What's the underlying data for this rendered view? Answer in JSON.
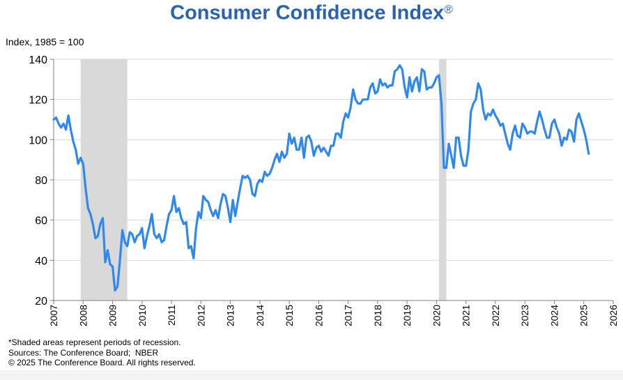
{
  "chart_data": {
    "type": "line",
    "title": "Consumer Confidence Index",
    "title_mark": "®",
    "ylabel": "Index, 1985 = 100",
    "xlabel": "",
    "ylim": [
      20,
      140
    ],
    "xlim": [
      2007,
      2026
    ],
    "y_ticks": [
      20,
      40,
      60,
      80,
      100,
      120,
      140
    ],
    "x_ticks": [
      "2007",
      "2008",
      "2009",
      "2010",
      "2011",
      "2012",
      "2013",
      "2014",
      "2015",
      "2016",
      "2017",
      "2018",
      "2019",
      "2020",
      "2021",
      "2022",
      "2023",
      "2024",
      "2025",
      "2026"
    ],
    "grid": "horizontal",
    "line_color": "#2e88ef",
    "recession_color": "#d9d9d9",
    "recessions": [
      [
        2007.917,
        2009.5
      ],
      [
        2020.083,
        2020.333
      ]
    ],
    "series": [
      {
        "x": [
          2007.0,
          2007.083,
          2007.167,
          2007.25,
          2007.333,
          2007.417,
          2007.5,
          2007.583,
          2007.667,
          2007.75,
          2007.833,
          2007.917,
          2008.0,
          2008.083,
          2008.167,
          2008.25,
          2008.333,
          2008.417,
          2008.5,
          2008.583,
          2008.667,
          2008.75,
          2008.833,
          2008.917,
          2009.0,
          2009.083,
          2009.167,
          2009.25,
          2009.333,
          2009.417,
          2009.5,
          2009.583,
          2009.667,
          2009.75,
          2009.833,
          2009.917,
          2010.0,
          2010.083,
          2010.167,
          2010.25,
          2010.333,
          2010.417,
          2010.5,
          2010.583,
          2010.667,
          2010.75,
          2010.833,
          2010.917,
          2011.0,
          2011.083,
          2011.167,
          2011.25,
          2011.333,
          2011.417,
          2011.5,
          2011.583,
          2011.667,
          2011.75,
          2011.833,
          2011.917,
          2012.0,
          2012.083,
          2012.167,
          2012.25,
          2012.333,
          2012.417,
          2012.5,
          2012.583,
          2012.667,
          2012.75,
          2012.833,
          2012.917,
          2013.0,
          2013.083,
          2013.167,
          2013.25,
          2013.333,
          2013.417,
          2013.5,
          2013.583,
          2013.667,
          2013.75,
          2013.833,
          2013.917,
          2014.0,
          2014.083,
          2014.167,
          2014.25,
          2014.333,
          2014.417,
          2014.5,
          2014.583,
          2014.667,
          2014.75,
          2014.833,
          2014.917,
          2015.0,
          2015.083,
          2015.167,
          2015.25,
          2015.333,
          2015.417,
          2015.5,
          2015.583,
          2015.667,
          2015.75,
          2015.833,
          2015.917,
          2016.0,
          2016.083,
          2016.167,
          2016.25,
          2016.333,
          2016.417,
          2016.5,
          2016.583,
          2016.667,
          2016.75,
          2016.833,
          2016.917,
          2017.0,
          2017.083,
          2017.167,
          2017.25,
          2017.333,
          2017.417,
          2017.5,
          2017.583,
          2017.667,
          2017.75,
          2017.833,
          2017.917,
          2018.0,
          2018.083,
          2018.167,
          2018.25,
          2018.333,
          2018.417,
          2018.5,
          2018.583,
          2018.667,
          2018.75,
          2018.833,
          2018.917,
          2019.0,
          2019.083,
          2019.167,
          2019.25,
          2019.333,
          2019.417,
          2019.5,
          2019.583,
          2019.667,
          2019.75,
          2019.833,
          2019.917,
          2020.0,
          2020.083,
          2020.167,
          2020.25,
          2020.333,
          2020.417,
          2020.5,
          2020.583,
          2020.667,
          2020.75,
          2020.833,
          2020.917,
          2021.0,
          2021.083,
          2021.167,
          2021.25,
          2021.333,
          2021.417,
          2021.5,
          2021.583,
          2021.667,
          2021.75,
          2021.833,
          2021.917,
          2022.0,
          2022.083,
          2022.167,
          2022.25,
          2022.333,
          2022.417,
          2022.5,
          2022.583,
          2022.667,
          2022.75,
          2022.833,
          2022.917,
          2023.0,
          2023.083,
          2023.167,
          2023.25,
          2023.333,
          2023.417,
          2023.5,
          2023.583,
          2023.667,
          2023.75,
          2023.833,
          2023.917,
          2024.0,
          2024.083,
          2024.167,
          2024.25,
          2024.333,
          2024.417,
          2024.5,
          2024.583,
          2024.667,
          2024.75,
          2024.833,
          2024.917,
          2025.0,
          2025.083,
          2025.167
        ],
        "values": [
          110,
          111,
          108,
          106,
          108,
          105,
          112,
          105,
          99,
          95,
          88,
          91,
          88,
          76,
          66,
          63,
          58,
          51,
          52,
          58,
          61,
          39,
          45,
          38,
          37,
          25,
          27,
          40,
          55,
          49,
          47,
          54,
          53,
          49,
          52,
          53,
          56,
          46,
          52,
          57,
          63,
          53,
          51,
          53,
          49,
          50,
          57,
          63,
          65,
          72,
          64,
          66,
          61,
          58,
          59,
          46,
          47,
          41,
          56,
          64,
          61,
          72,
          70,
          69,
          65,
          62,
          65,
          61,
          68,
          73,
          72,
          66,
          59,
          70,
          62,
          69,
          76,
          82,
          81,
          82,
          80,
          73,
          72,
          78,
          80,
          79,
          84,
          82,
          83,
          86,
          90,
          93,
          89,
          94,
          91,
          93,
          103,
          98,
          101,
          95,
          95,
          101,
          91,
          101,
          102,
          99,
          92,
          96,
          97,
          94,
          96,
          94,
          92,
          97,
          97,
          103,
          103,
          101,
          109,
          113,
          111,
          116,
          125,
          120,
          118,
          118,
          120,
          120,
          120,
          126,
          128,
          123,
          124,
          130,
          127,
          128,
          126,
          127,
          127,
          134,
          135,
          137,
          135,
          126,
          121,
          131,
          124,
          129,
          131,
          124,
          135,
          134,
          125,
          126,
          126,
          128,
          131,
          132,
          118,
          86,
          86,
          98,
          92,
          86,
          101,
          101,
          92,
          87,
          87,
          95,
          114,
          118,
          120,
          128,
          125,
          115,
          110,
          113,
          112,
          115,
          112,
          110,
          107,
          108,
          103,
          98,
          95,
          103,
          107,
          102,
          101,
          108,
          106,
          103,
          104,
          104,
          103,
          109,
          114,
          110,
          105,
          101,
          101,
          108,
          110,
          106,
          103,
          97,
          101,
          100,
          105,
          104,
          99,
          110,
          113,
          109,
          105,
          100,
          93
        ]
      }
    ]
  },
  "footnotes": {
    "line1": "*Shaded areas represent periods of recession.",
    "line2": "Sources: The Conference Board;  NBER",
    "line3": "© 2025 The Conference Board. All rights reserved."
  }
}
